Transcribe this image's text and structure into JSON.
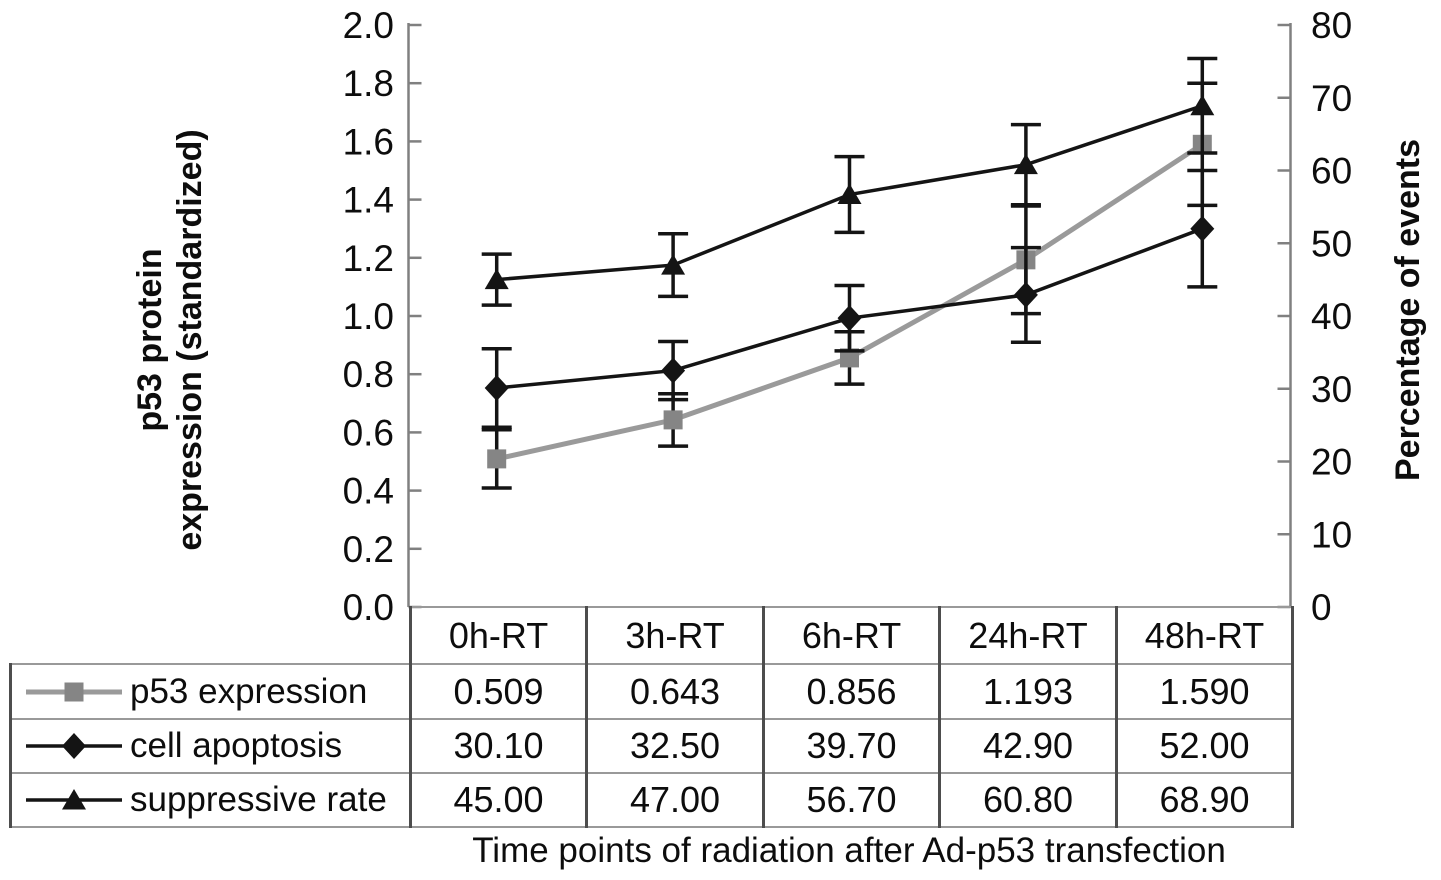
{
  "chart_data": {
    "type": "line",
    "title": "",
    "xlabel": "Time points of radiation after Ad-p53 transfection",
    "categories": [
      "0h-RT",
      "3h-RT",
      "6h-RT",
      "24h-RT",
      "48h-RT"
    ],
    "series": [
      {
        "name": "p53 expression",
        "axis": "left",
        "marker": "square",
        "line_color": "#9a9a9a",
        "marker_color": "#858585",
        "values": [
          0.509,
          0.643,
          0.856,
          1.193,
          1.59
        ],
        "display_values": [
          "0.509",
          "0.643",
          "0.856",
          "1.193",
          "1.590"
        ],
        "errors": [
          0.1,
          0.09,
          0.09,
          0.185,
          0.21
        ]
      },
      {
        "name": "cell apoptosis",
        "axis": "right",
        "marker": "diamond",
        "line_color": "#141414",
        "marker_color": "#141414",
        "values": [
          30.1,
          32.5,
          39.7,
          42.9,
          52.0
        ],
        "display_values": [
          "30.10",
          "32.50",
          "39.70",
          "42.90",
          "52.00"
        ],
        "errors": [
          5.4,
          4.0,
          4.5,
          6.5,
          8.0
        ]
      },
      {
        "name": "suppressive rate",
        "axis": "right",
        "marker": "triangle",
        "line_color": "#141414",
        "marker_color": "#141414",
        "values": [
          45.0,
          47.0,
          56.7,
          60.8,
          68.9
        ],
        "display_values": [
          "45.00",
          "47.00",
          "56.70",
          "60.80",
          "68.90"
        ],
        "errors": [
          3.5,
          4.3,
          5.2,
          5.5,
          6.5
        ]
      }
    ],
    "left_axis": {
      "label_line1": "p53 protein",
      "label_line2": "expression (standardized)",
      "min": 0.0,
      "max": 2.0,
      "step": 0.2,
      "tick_labels": [
        "0.0",
        "0.2",
        "0.4",
        "0.6",
        "0.8",
        "1.0",
        "1.2",
        "1.4",
        "1.6",
        "1.8",
        "2.0"
      ]
    },
    "right_axis": {
      "label": "Percentage of events",
      "min": 0,
      "max": 80,
      "step": 10,
      "tick_labels": [
        "0",
        "10",
        "20",
        "30",
        "40",
        "50",
        "60",
        "70",
        "80"
      ]
    },
    "grid": false,
    "legend_position": "table-left",
    "colors": {
      "axis_line": "#808080",
      "error_bar": "#141414",
      "table_border_vertical": "#4d4d4d",
      "table_border_horizontal": "#999999",
      "gray_series": "#9a9a9a",
      "black_series": "#141414"
    }
  }
}
